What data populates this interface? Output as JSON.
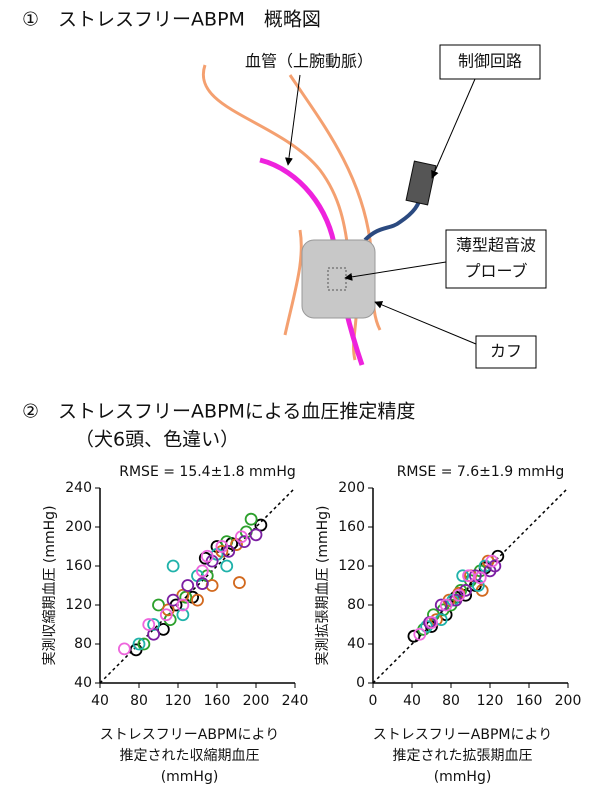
{
  "diagram": {
    "title": "①　ストレスフリーABPM　概略図",
    "vessel_label": "血管（上腕動脈）",
    "control_label": "制御回路",
    "probe_label": [
      "薄型超音波",
      "プローブ"
    ],
    "cuff_label": "カフ"
  },
  "section2": {
    "title": "②　ストレスフリーABPMによる血圧推定精度",
    "subtitle": "（犬6頭、色違い）"
  },
  "chart_data": [
    {
      "type": "scatter",
      "title": "RMSE = 15.4±1.8 mmHg",
      "xlabel": [
        "ストレスフリーABPMにより",
        "推定された収縮期血圧",
        "(mmHg)"
      ],
      "ylabel": "実測収縮期血圧 (mmHg)",
      "xlim": [
        40,
        240
      ],
      "xticks": [
        40,
        80,
        120,
        160,
        200,
        240
      ],
      "ylim": [
        40,
        240
      ],
      "yticks": [
        40,
        80,
        120,
        160,
        200,
        240
      ],
      "series": [
        {
          "color": "#000000",
          "x": [
            77,
            105,
            118,
            135,
            148,
            160,
            175,
            205
          ],
          "values": [
            74,
            95,
            120,
            128,
            168,
            180,
            183,
            202
          ]
        },
        {
          "color": "#2ca02c",
          "x": [
            85,
            100,
            112,
            128,
            150,
            170,
            190,
            195
          ],
          "values": [
            80,
            120,
            105,
            128,
            150,
            185,
            195,
            208
          ]
        },
        {
          "color": "#d2691e",
          "x": [
            110,
            125,
            140,
            155,
            165,
            180,
            183
          ],
          "values": [
            115,
            130,
            125,
            140,
            175,
            182,
            143
          ]
        },
        {
          "color": "#20b2aa",
          "x": [
            80,
            95,
            115,
            125,
            140,
            160,
            170
          ],
          "values": [
            80,
            100,
            160,
            110,
            150,
            172,
            160
          ]
        },
        {
          "color": "#7b1fa2",
          "x": [
            95,
            115,
            130,
            145,
            155,
            172,
            188,
            200
          ],
          "values": [
            90,
            125,
            140,
            142,
            165,
            175,
            185,
            192
          ]
        },
        {
          "color": "#ee66dd",
          "x": [
            65,
            90,
            108,
            125,
            145,
            150,
            165,
            185
          ],
          "values": [
            75,
            100,
            110,
            120,
            155,
            170,
            180,
            190
          ]
        }
      ]
    },
    {
      "type": "scatter",
      "title": "RMSE = 7.6±1.9 mmHg",
      "xlabel": [
        "ストレスフリーABPMにより",
        "推定された拡張期血圧",
        "(mmHg)"
      ],
      "ylabel": "実測拡張期血圧 (mmHg)",
      "xlim": [
        0,
        200
      ],
      "xticks": [
        0,
        40,
        80,
        120,
        160,
        200
      ],
      "ylim": [
        0,
        200
      ],
      "yticks": [
        0,
        40,
        80,
        120,
        160,
        200
      ],
      "series": [
        {
          "color": "#000000",
          "x": [
            42,
            60,
            75,
            85,
            95,
            105,
            115,
            128
          ],
          "values": [
            48,
            58,
            70,
            88,
            90,
            100,
            118,
            130
          ]
        },
        {
          "color": "#2ca02c",
          "x": [
            52,
            62,
            72,
            80,
            90,
            100,
            110
          ],
          "values": [
            55,
            70,
            75,
            80,
            95,
            105,
            115
          ]
        },
        {
          "color": "#d2691e",
          "x": [
            65,
            78,
            88,
            100,
            112,
            118
          ],
          "values": [
            65,
            85,
            92,
            110,
            95,
            125
          ]
        },
        {
          "color": "#20b2aa",
          "x": [
            55,
            70,
            82,
            92,
            108,
            115
          ],
          "values": [
            58,
            65,
            85,
            110,
            100,
            120
          ]
        },
        {
          "color": "#7b1fa2",
          "x": [
            58,
            70,
            85,
            95,
            105,
            120,
            125
          ],
          "values": [
            62,
            80,
            85,
            95,
            110,
            115,
            120
          ]
        },
        {
          "color": "#ee66dd",
          "x": [
            48,
            60,
            75,
            88,
            98,
            110,
            122
          ],
          "values": [
            50,
            62,
            80,
            90,
            110,
            108,
            125
          ]
        }
      ]
    }
  ]
}
